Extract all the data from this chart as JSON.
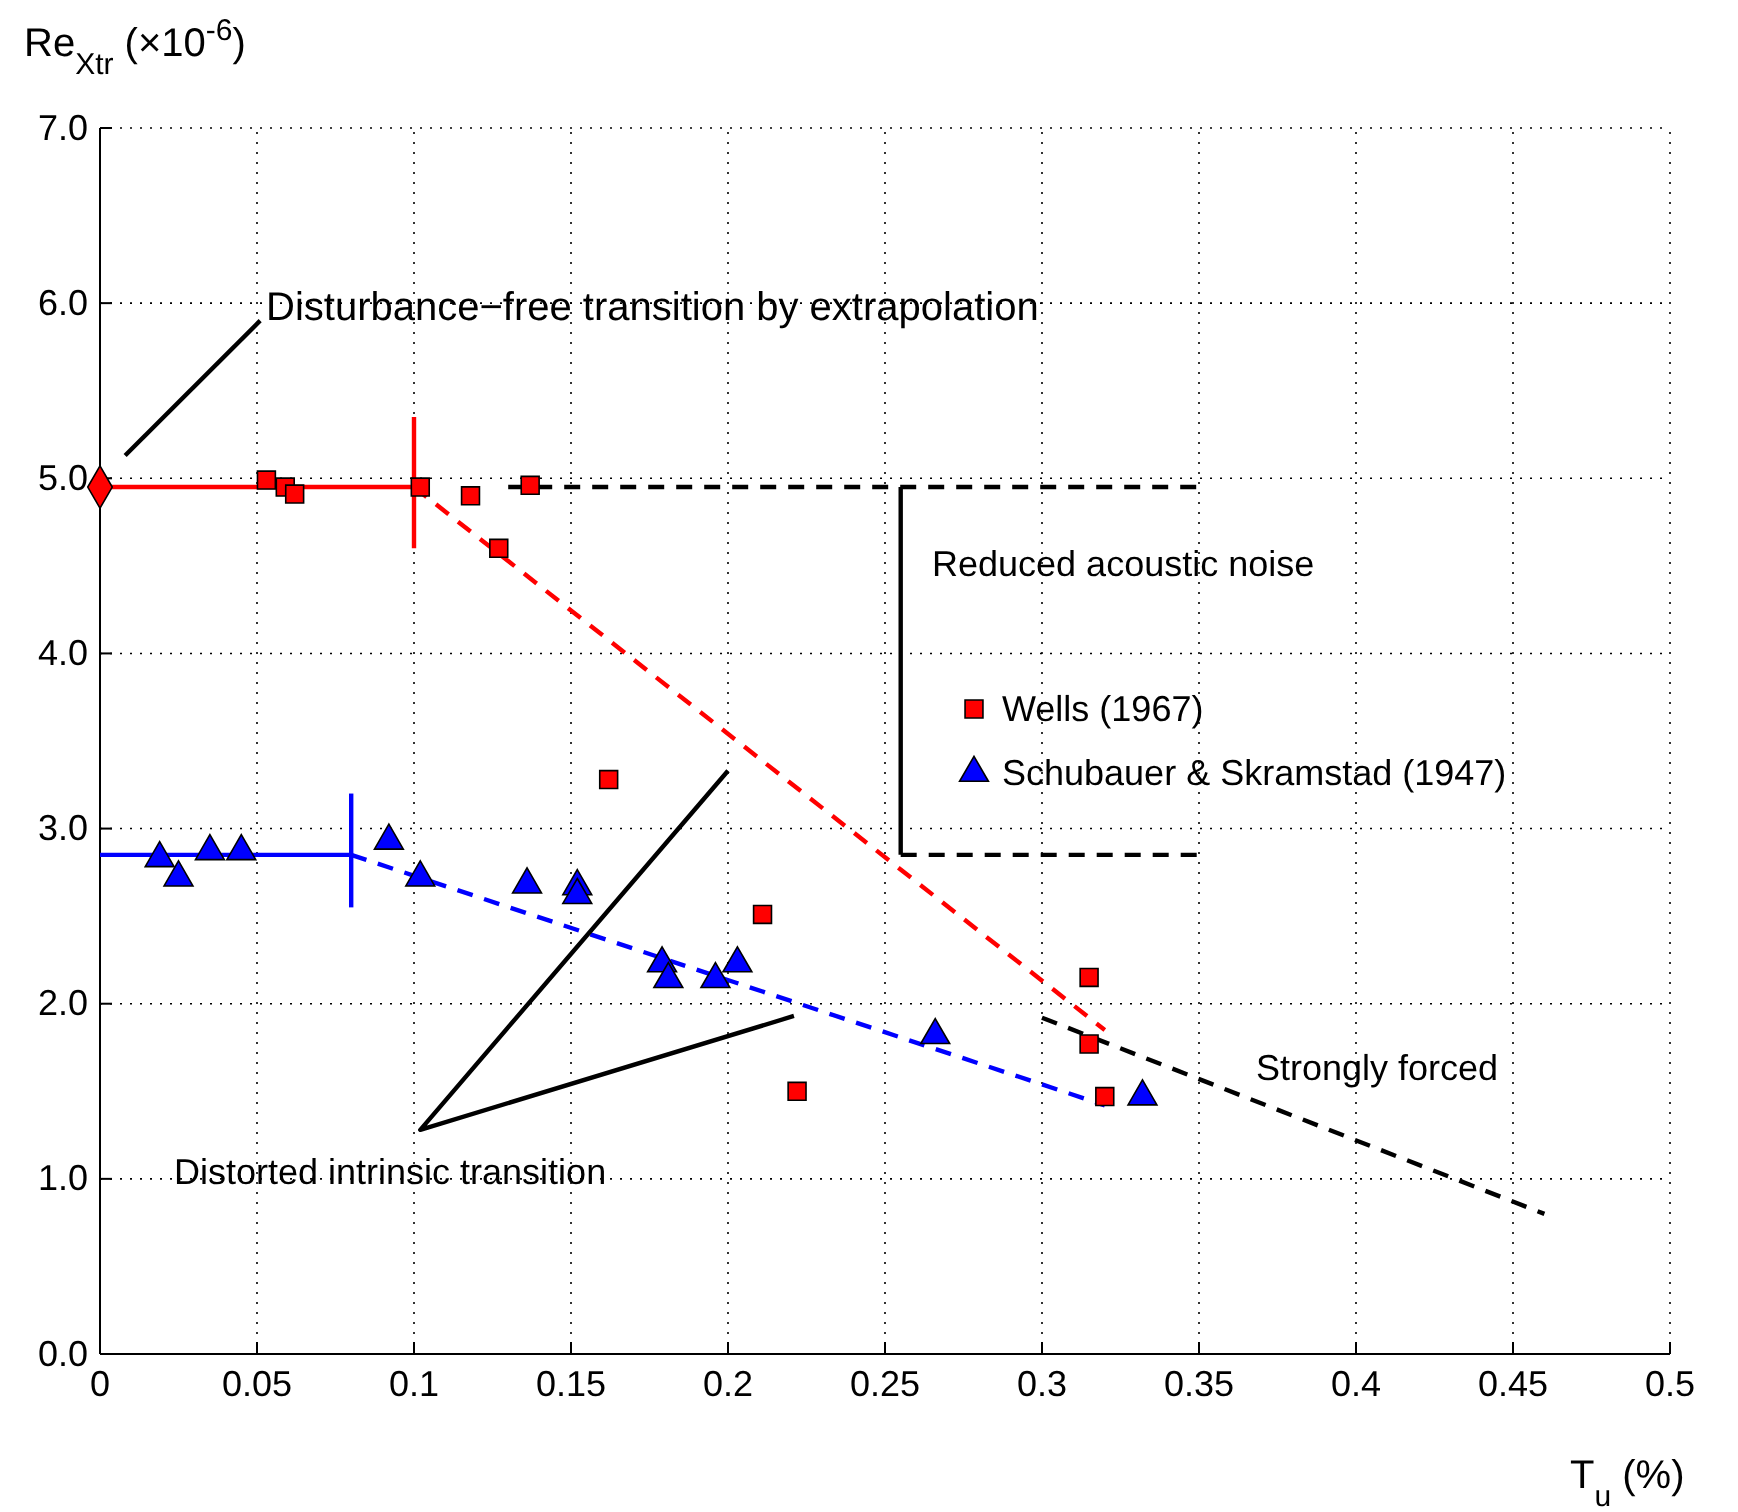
{
  "chart_data": {
    "type": "scatter",
    "xlabel": "T$_{u}$ (%)",
    "ylabel": "Re$_{Xtr}$ (×10$^{-6}$)",
    "xlim": [
      0,
      0.5
    ],
    "xticks": [
      0,
      0.05,
      0.1,
      0.15,
      0.2,
      0.25,
      0.3,
      0.35,
      0.4,
      0.45,
      0.5
    ],
    "ylim": [
      0,
      7
    ],
    "yticks": [
      {
        "value": 0,
        "label": "0.0"
      },
      {
        "value": 1,
        "label": "1.0"
      },
      {
        "value": 2,
        "label": "2.0"
      },
      {
        "value": 3,
        "label": "3.0"
      },
      {
        "value": 4,
        "label": "4.0"
      },
      {
        "value": 5,
        "label": "5.0"
      },
      {
        "value": 6,
        "label": "6.0"
      },
      {
        "value": 7,
        "label": "7.0"
      }
    ],
    "grid": true,
    "legend": "right",
    "series": [
      {
        "type": "line",
        "color": "#ff0000",
        "line_style": "solid",
        "marker": "none",
        "x": [
          0,
          0.1
        ],
        "values": [
          4.95,
          4.95
        ]
      },
      {
        "type": "line",
        "color": "#ff0000",
        "line_style": "solid",
        "marker": "none",
        "x": [
          0.1,
          0.1
        ],
        "values": [
          4.6,
          5.35
        ]
      },
      {
        "type": "line",
        "color": "#ff0000",
        "line_style": "dashed",
        "marker": "none",
        "x": [
          0.1,
          0.32
        ],
        "values": [
          4.95,
          1.85
        ]
      },
      {
        "type": "line",
        "color": "#0000ff",
        "line_style": "solid",
        "marker": "none",
        "x": [
          0,
          0.08
        ],
        "values": [
          2.85,
          2.85
        ]
      },
      {
        "type": "line",
        "color": "#0000ff",
        "line_style": "solid",
        "marker": "none",
        "x": [
          0.08,
          0.08
        ],
        "values": [
          2.55,
          3.2
        ]
      },
      {
        "type": "line",
        "color": "#0000ff",
        "line_style": "dashed",
        "marker": "none",
        "x": [
          0.08,
          0.32
        ],
        "values": [
          2.85,
          1.42
        ]
      },
      {
        "type": "line",
        "color": "#000000",
        "line_style": "dashed",
        "marker": "none",
        "x": [
          0.13,
          0.35
        ],
        "values": [
          4.95,
          4.95
        ]
      },
      {
        "type": "line",
        "color": "#000000",
        "line_style": "dashed",
        "marker": "none",
        "x": [
          0.255,
          0.35
        ],
        "values": [
          2.85,
          2.85
        ]
      },
      {
        "type": "line",
        "color": "#000000",
        "line_style": "solid",
        "marker": "none",
        "x": [
          0.255,
          0.255
        ],
        "values": [
          2.85,
          4.95
        ]
      },
      {
        "type": "line",
        "color": "#000000",
        "line_style": "dashed",
        "marker": "none",
        "x": [
          0.3,
          0.46
        ],
        "values": [
          1.92,
          0.8
        ]
      },
      {
        "type": "line",
        "color": "#000000",
        "line_style": "solid",
        "marker": "none",
        "x": [
          0.008,
          0.051
        ],
        "values": [
          5.13,
          5.9
        ]
      },
      {
        "type": "line",
        "color": "#000000",
        "line_style": "solid",
        "marker": "none",
        "x": [
          0.2,
          0.102,
          0.221
        ],
        "values": [
          3.33,
          1.28,
          1.93
        ]
      },
      {
        "color": "#ff0000",
        "marker": "diamond",
        "x": [
          0
        ],
        "values": [
          4.95
        ]
      },
      {
        "name": "Wells (1967)",
        "color": "#ff0000",
        "marker": "square",
        "x": [
          0.053,
          0.059,
          0.062,
          0.102,
          0.118,
          0.127,
          0.137,
          0.162,
          0.211,
          0.222,
          0.315,
          0.315,
          0.32
        ],
        "values": [
          4.99,
          4.95,
          4.91,
          4.95,
          4.9,
          4.6,
          4.96,
          3.28,
          2.51,
          1.5,
          2.15,
          1.77,
          1.47
        ]
      },
      {
        "name": "Schubauer & Skramstad (1947)",
        "color": "#0000ff",
        "marker": "triangle",
        "x": [
          0.019,
          0.025,
          0.035,
          0.045,
          0.092,
          0.102,
          0.136,
          0.152,
          0.152,
          0.179,
          0.181,
          0.196,
          0.203,
          0.266,
          0.332
        ],
        "values": [
          2.83,
          2.72,
          2.87,
          2.87,
          2.93,
          2.72,
          2.68,
          2.67,
          2.62,
          2.23,
          2.14,
          2.14,
          2.23,
          1.82,
          1.47
        ]
      }
    ],
    "annotations": [
      "Disturbance−free transition by extrapolation",
      "Reduced acoustic noise",
      "Strongly forced",
      "Distorted intrinsic transition"
    ]
  }
}
